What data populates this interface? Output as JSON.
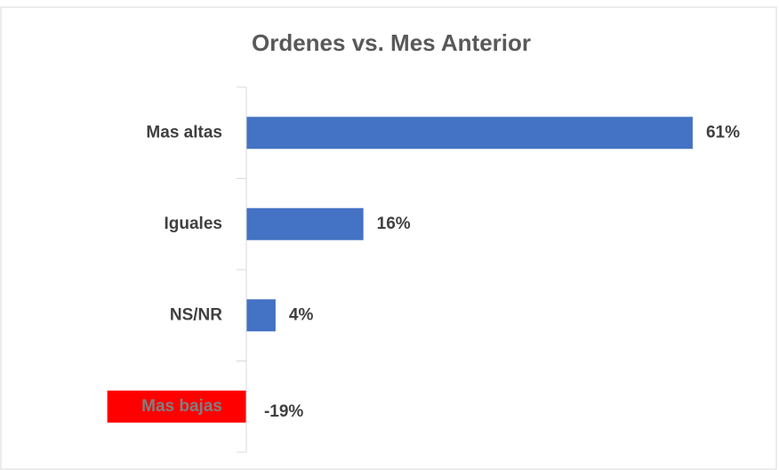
{
  "chart_data": {
    "type": "hbar",
    "title": "Ordenes vs. Mes Anterior",
    "categories": [
      "Mas altas",
      "Iguales",
      "NS/NR",
      "Mas bajas"
    ],
    "values": [
      61,
      16,
      4,
      -19
    ],
    "value_labels": [
      "61%",
      "16%",
      "4%",
      "-19%"
    ],
    "colors": [
      "#4472c4",
      "#4472c4",
      "#4472c4",
      "#ff0000"
    ],
    "xlim": [
      -20,
      70
    ]
  }
}
